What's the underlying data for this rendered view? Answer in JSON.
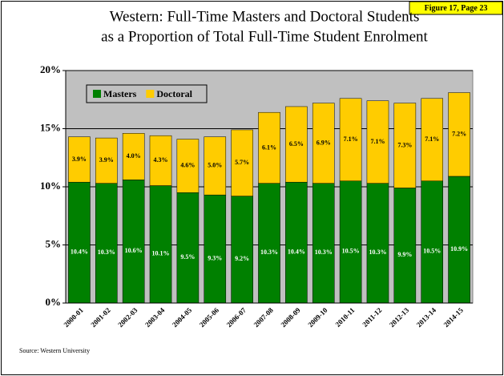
{
  "chart_data": {
    "type": "stacked_bar",
    "title": "Western: Full-Time Masters and Doctoral Students",
    "subtitle": "as a Proportion of Total Full-Time Student Enrolment",
    "figure_label": "Figure 17, Page 23",
    "source": "Source:  Western University",
    "categories": [
      "2000-01",
      "2001-02",
      "2002-03",
      "2003-04",
      "2004-05",
      "2005-06",
      "2006-07",
      "2007-08",
      "2008-09",
      "2009-10",
      "2010-11",
      "2011-12",
      "2012-13",
      "2013-14",
      "2014-15"
    ],
    "series": [
      {
        "name": "Masters",
        "color": "#008000",
        "values": [
          10.4,
          10.3,
          10.6,
          10.1,
          9.5,
          9.3,
          9.2,
          10.3,
          10.4,
          10.3,
          10.5,
          10.3,
          9.9,
          10.5,
          10.9
        ],
        "value_labels": [
          "10.4%",
          "10.3%",
          "10.6%",
          "10.1%",
          "9.5%",
          "9.3%",
          "9.2%",
          "10.3%",
          "10.4%",
          "10.3%",
          "10.5%",
          "10.3%",
          "9.9%",
          "10.5%",
          "10.9%"
        ]
      },
      {
        "name": "Doctoral",
        "color": "#ffcc00",
        "values": [
          3.9,
          3.9,
          4.0,
          4.3,
          4.6,
          5.0,
          5.7,
          6.1,
          6.5,
          6.9,
          7.1,
          7.1,
          7.3,
          7.1,
          7.2
        ],
        "value_labels": [
          "3.9%",
          "3.9%",
          "4.0%",
          "4.3%",
          "4.6%",
          "5.0%",
          "5.7%",
          "6.1%",
          "6.5%",
          "6.9%",
          "7.1%",
          "7.1%",
          "7.3%",
          "7.1%",
          "7.2%"
        ]
      }
    ],
    "ylim": [
      0,
      20
    ],
    "yticks": [
      {
        "value": 0,
        "label": "0%"
      },
      {
        "value": 5,
        "label": "5%"
      },
      {
        "value": 10,
        "label": "10%"
      },
      {
        "value": 15,
        "label": "15%"
      },
      {
        "value": 20,
        "label": "20%"
      }
    ],
    "grid": true,
    "legend": "top-left"
  }
}
